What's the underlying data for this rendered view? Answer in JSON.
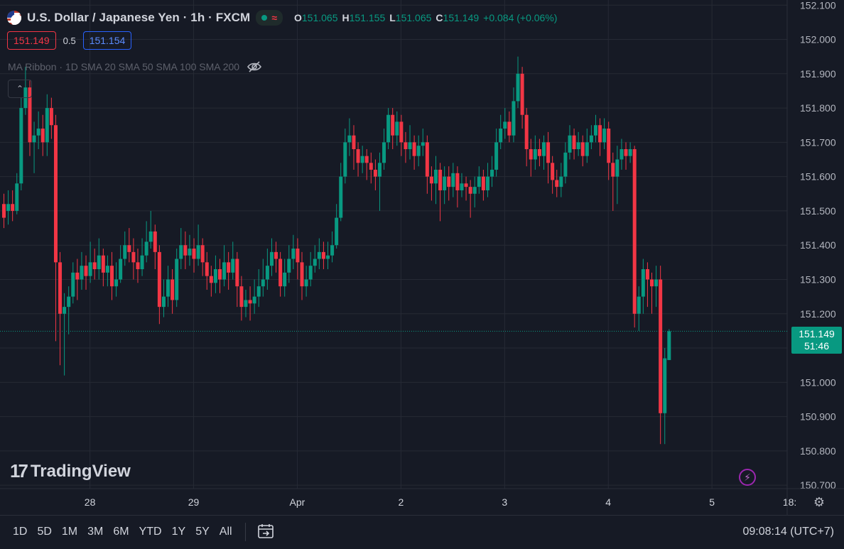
{
  "header": {
    "symbol_title": "U.S. Dollar / Japanese Yen · 1h · FXCM",
    "ohlc": [
      {
        "label": "O",
        "value": "151.065"
      },
      {
        "label": "H",
        "value": "151.155"
      },
      {
        "label": "L",
        "value": "151.065"
      },
      {
        "label": "C",
        "value": "151.149"
      }
    ],
    "change": "+0.084 (+0.06%)",
    "bid": "151.149",
    "spread": "0.5",
    "ask": "151.154",
    "indicator": "MA Ribbon · 1D SMA 20 SMA 50 SMA 100 SMA 200",
    "collapse_glyph": "⌃"
  },
  "logo_text": "TradingView",
  "logo_mark": "17",
  "price_badge": {
    "price": "151.149",
    "countdown": "51:46"
  },
  "bottom_bar": {
    "ranges": [
      "1D",
      "5D",
      "1M",
      "3M",
      "6M",
      "YTD",
      "1Y",
      "5Y",
      "All"
    ],
    "clock": "09:08:14 (UTC+7)"
  },
  "colors": {
    "up": "#089981",
    "down": "#f23645",
    "grid": "#262a35",
    "background": "#161a25"
  },
  "icons": {
    "gear": "gear-icon",
    "bolt": "lightning-icon",
    "eye": "eye-slash-icon",
    "calendar": "calendar-range-icon"
  },
  "chart_data": {
    "type": "candlestick",
    "y_axis": {
      "ticks": [
        150.7,
        150.8,
        150.9,
        151.0,
        151.1,
        151.2,
        151.3,
        151.4,
        151.5,
        151.6,
        151.7,
        151.8,
        151.9,
        152.0,
        152.1
      ],
      "tick_labels": [
        "150.700",
        "150.800",
        "150.900",
        "151.000",
        "151.100",
        "151.200",
        "151.300",
        "151.400",
        "151.500",
        "151.600",
        "151.700",
        "151.800",
        "151.900",
        "152.000",
        "152.100"
      ],
      "range": [
        150.69,
        152.115
      ]
    },
    "x_axis": {
      "tick_labels": [
        "28",
        "29",
        "Apr",
        "2",
        "3",
        "4",
        "5",
        "18:"
      ],
      "tick_bar_index": [
        20,
        44,
        68,
        92,
        116,
        140,
        164,
        182
      ]
    },
    "current_price": 151.149,
    "grid": true,
    "candles": [
      [
        151.52,
        151.48,
        151.55,
        151.45
      ],
      [
        151.5,
        151.52,
        151.56,
        151.46
      ],
      [
        151.52,
        151.5,
        151.56,
        151.47
      ],
      [
        151.5,
        151.58,
        151.61,
        151.49
      ],
      [
        151.58,
        151.8,
        151.83,
        151.56
      ],
      [
        151.8,
        151.86,
        151.92,
        151.78
      ],
      [
        151.86,
        151.7,
        151.88,
        151.66
      ],
      [
        151.7,
        151.72,
        151.76,
        151.61
      ],
      [
        151.72,
        151.74,
        151.79,
        151.68
      ],
      [
        151.74,
        151.7,
        151.78,
        151.66
      ],
      [
        151.7,
        151.8,
        151.84,
        151.66
      ],
      [
        151.8,
        151.75,
        151.83,
        151.71
      ],
      [
        151.75,
        151.35,
        151.78,
        151.12
      ],
      [
        151.35,
        151.2,
        151.38,
        151.05
      ],
      [
        151.2,
        151.22,
        151.26,
        151.02
      ],
      [
        151.22,
        151.25,
        151.28,
        151.14
      ],
      [
        151.25,
        151.32,
        151.35,
        151.23
      ],
      [
        151.32,
        151.3,
        151.36,
        151.24
      ],
      [
        151.3,
        151.34,
        151.38,
        151.27
      ],
      [
        151.34,
        151.31,
        151.37,
        151.27
      ],
      [
        151.31,
        151.35,
        151.41,
        151.29
      ],
      [
        151.35,
        151.33,
        151.39,
        151.3
      ],
      [
        151.33,
        151.37,
        151.42,
        151.3
      ],
      [
        151.37,
        151.32,
        151.39,
        151.28
      ],
      [
        151.32,
        151.34,
        151.37,
        151.28
      ],
      [
        151.34,
        151.28,
        151.38,
        151.24
      ],
      [
        151.28,
        151.3,
        151.35,
        151.25
      ],
      [
        151.3,
        151.36,
        151.4,
        151.29
      ],
      [
        151.36,
        151.4,
        151.44,
        151.34
      ],
      [
        151.4,
        151.38,
        151.45,
        151.35
      ],
      [
        151.38,
        151.35,
        151.42,
        151.3
      ],
      [
        151.35,
        151.33,
        151.39,
        151.29
      ],
      [
        151.33,
        151.37,
        151.42,
        151.31
      ],
      [
        151.37,
        151.41,
        151.47,
        151.35
      ],
      [
        151.41,
        151.44,
        151.5,
        151.39
      ],
      [
        151.44,
        151.38,
        151.46,
        151.33
      ],
      [
        151.38,
        151.22,
        151.4,
        151.17
      ],
      [
        151.22,
        151.25,
        151.3,
        151.19
      ],
      [
        151.25,
        151.3,
        151.34,
        151.22
      ],
      [
        151.3,
        151.24,
        151.33,
        151.2
      ],
      [
        151.24,
        151.36,
        151.39,
        151.22
      ],
      [
        151.36,
        151.4,
        151.45,
        151.33
      ],
      [
        151.4,
        151.37,
        151.44,
        151.33
      ],
      [
        151.37,
        151.39,
        151.43,
        151.34
      ],
      [
        151.39,
        151.36,
        151.42,
        151.32
      ],
      [
        151.36,
        151.4,
        151.46,
        151.34
      ],
      [
        151.4,
        151.35,
        151.42,
        151.31
      ],
      [
        151.35,
        151.31,
        151.38,
        151.27
      ],
      [
        151.31,
        151.29,
        151.34,
        151.25
      ],
      [
        151.29,
        151.33,
        151.37,
        151.26
      ],
      [
        151.33,
        151.3,
        151.36,
        151.26
      ],
      [
        151.3,
        151.35,
        151.4,
        151.28
      ],
      [
        151.35,
        151.32,
        151.38,
        151.27
      ],
      [
        151.32,
        151.36,
        151.41,
        151.3
      ],
      [
        151.36,
        151.28,
        151.38,
        151.22
      ],
      [
        151.28,
        151.22,
        151.31,
        151.18
      ],
      [
        151.22,
        151.24,
        151.27,
        151.19
      ],
      [
        151.24,
        151.23,
        151.28,
        151.18
      ],
      [
        151.23,
        151.25,
        151.3,
        151.2
      ],
      [
        151.25,
        151.28,
        151.33,
        151.22
      ],
      [
        151.28,
        151.3,
        151.36,
        151.25
      ],
      [
        151.3,
        151.34,
        151.39,
        151.27
      ],
      [
        151.34,
        151.38,
        151.42,
        151.31
      ],
      [
        151.38,
        151.36,
        151.41,
        151.32
      ],
      [
        151.36,
        151.28,
        151.38,
        151.25
      ],
      [
        151.28,
        151.32,
        151.36,
        151.25
      ],
      [
        151.32,
        151.36,
        151.4,
        151.29
      ],
      [
        151.36,
        151.39,
        151.43,
        151.33
      ],
      [
        151.39,
        151.35,
        151.42,
        151.3
      ],
      [
        151.35,
        151.28,
        151.38,
        151.24
      ],
      [
        151.28,
        151.3,
        151.34,
        151.25
      ],
      [
        151.3,
        151.34,
        151.38,
        151.28
      ],
      [
        151.34,
        151.36,
        151.4,
        151.32
      ],
      [
        151.36,
        151.38,
        151.42,
        151.33
      ],
      [
        151.38,
        151.36,
        151.41,
        151.33
      ],
      [
        151.36,
        151.37,
        151.41,
        151.33
      ],
      [
        151.37,
        151.4,
        151.44,
        151.35
      ],
      [
        151.4,
        151.48,
        151.52,
        151.39
      ],
      [
        151.48,
        151.6,
        151.64,
        151.47
      ],
      [
        151.6,
        151.7,
        151.74,
        151.58
      ],
      [
        151.7,
        151.72,
        151.77,
        151.66
      ],
      [
        151.72,
        151.68,
        151.75,
        151.62
      ],
      [
        151.68,
        151.64,
        151.7,
        151.6
      ],
      [
        151.64,
        151.66,
        151.69,
        151.61
      ],
      [
        151.66,
        151.64,
        151.68,
        151.59
      ],
      [
        151.64,
        151.62,
        151.67,
        151.58
      ],
      [
        151.62,
        151.6,
        151.65,
        151.56
      ],
      [
        151.6,
        151.64,
        151.67,
        151.5
      ],
      [
        151.64,
        151.7,
        151.74,
        151.62
      ],
      [
        151.7,
        151.78,
        151.8,
        151.68
      ],
      [
        151.78,
        151.72,
        151.8,
        151.68
      ],
      [
        151.72,
        151.76,
        151.79,
        151.69
      ],
      [
        151.76,
        151.7,
        151.78,
        151.66
      ],
      [
        151.7,
        151.68,
        151.73,
        151.64
      ],
      [
        151.68,
        151.7,
        151.75,
        151.65
      ],
      [
        151.7,
        151.66,
        151.72,
        151.62
      ],
      [
        151.66,
        151.69,
        151.72,
        151.63
      ],
      [
        151.69,
        151.7,
        151.74,
        151.66
      ],
      [
        151.7,
        151.6,
        151.72,
        151.55
      ],
      [
        151.6,
        151.58,
        151.63,
        151.53
      ],
      [
        151.58,
        151.62,
        151.66,
        151.52
      ],
      [
        151.62,
        151.56,
        151.64,
        151.47
      ],
      [
        151.56,
        151.6,
        151.63,
        151.52
      ],
      [
        151.6,
        151.57,
        151.63,
        151.53
      ],
      [
        151.57,
        151.61,
        151.64,
        151.54
      ],
      [
        151.61,
        151.56,
        151.63,
        151.51
      ],
      [
        151.56,
        151.58,
        151.61,
        151.54
      ],
      [
        151.58,
        151.57,
        151.6,
        151.53
      ],
      [
        151.57,
        151.55,
        151.59,
        151.48
      ],
      [
        151.55,
        151.57,
        151.6,
        151.51
      ],
      [
        151.57,
        151.6,
        151.63,
        151.55
      ],
      [
        151.6,
        151.56,
        151.62,
        151.53
      ],
      [
        151.56,
        151.6,
        151.64,
        151.54
      ],
      [
        151.6,
        151.62,
        151.66,
        151.57
      ],
      [
        151.62,
        151.7,
        151.74,
        151.6
      ],
      [
        151.7,
        151.74,
        151.78,
        151.68
      ],
      [
        151.74,
        151.76,
        151.8,
        151.71
      ],
      [
        151.76,
        151.72,
        151.79,
        151.7
      ],
      [
        151.72,
        151.82,
        151.86,
        151.7
      ],
      [
        151.82,
        151.9,
        151.95,
        151.8
      ],
      [
        151.9,
        151.78,
        151.92,
        151.74
      ],
      [
        151.78,
        151.68,
        151.8,
        151.63
      ],
      [
        151.68,
        151.65,
        151.71,
        151.6
      ],
      [
        151.65,
        151.68,
        151.72,
        151.62
      ],
      [
        151.68,
        151.66,
        151.71,
        151.63
      ],
      [
        151.66,
        151.7,
        151.72,
        151.62
      ],
      [
        151.7,
        151.64,
        151.73,
        151.58
      ],
      [
        151.64,
        151.59,
        151.66,
        151.55
      ],
      [
        151.59,
        151.57,
        151.62,
        151.54
      ],
      [
        151.57,
        151.6,
        151.64,
        151.54
      ],
      [
        151.6,
        151.67,
        151.7,
        151.58
      ],
      [
        151.67,
        151.72,
        151.75,
        151.65
      ],
      [
        151.72,
        151.68,
        151.74,
        151.65
      ],
      [
        151.68,
        151.7,
        151.73,
        151.66
      ],
      [
        151.7,
        151.66,
        151.72,
        151.63
      ],
      [
        151.66,
        151.7,
        151.74,
        151.64
      ],
      [
        151.7,
        151.72,
        151.75,
        151.68
      ],
      [
        151.72,
        151.75,
        151.78,
        151.7
      ],
      [
        151.75,
        151.7,
        151.77,
        151.66
      ],
      [
        151.7,
        151.74,
        151.77,
        151.68
      ],
      [
        151.74,
        151.64,
        151.76,
        151.59
      ],
      [
        151.64,
        151.6,
        151.67,
        151.5
      ],
      [
        151.6,
        151.65,
        151.69,
        151.52
      ],
      [
        151.65,
        151.68,
        151.71,
        151.62
      ],
      [
        151.68,
        151.66,
        151.7,
        151.62
      ],
      [
        151.66,
        151.68,
        151.7,
        151.64
      ],
      [
        151.68,
        151.2,
        151.69,
        151.16
      ],
      [
        151.2,
        151.25,
        151.28,
        151.15
      ],
      [
        151.25,
        151.33,
        151.36,
        151.2
      ],
      [
        151.33,
        151.3,
        151.35,
        151.22
      ],
      [
        151.3,
        151.28,
        151.32,
        151.2
      ],
      [
        151.28,
        151.3,
        151.34,
        151.22
      ],
      [
        151.3,
        150.91,
        151.34,
        150.82
      ],
      [
        150.91,
        151.07,
        151.1,
        150.82
      ],
      [
        151.065,
        151.149,
        151.155,
        151.065
      ]
    ]
  }
}
